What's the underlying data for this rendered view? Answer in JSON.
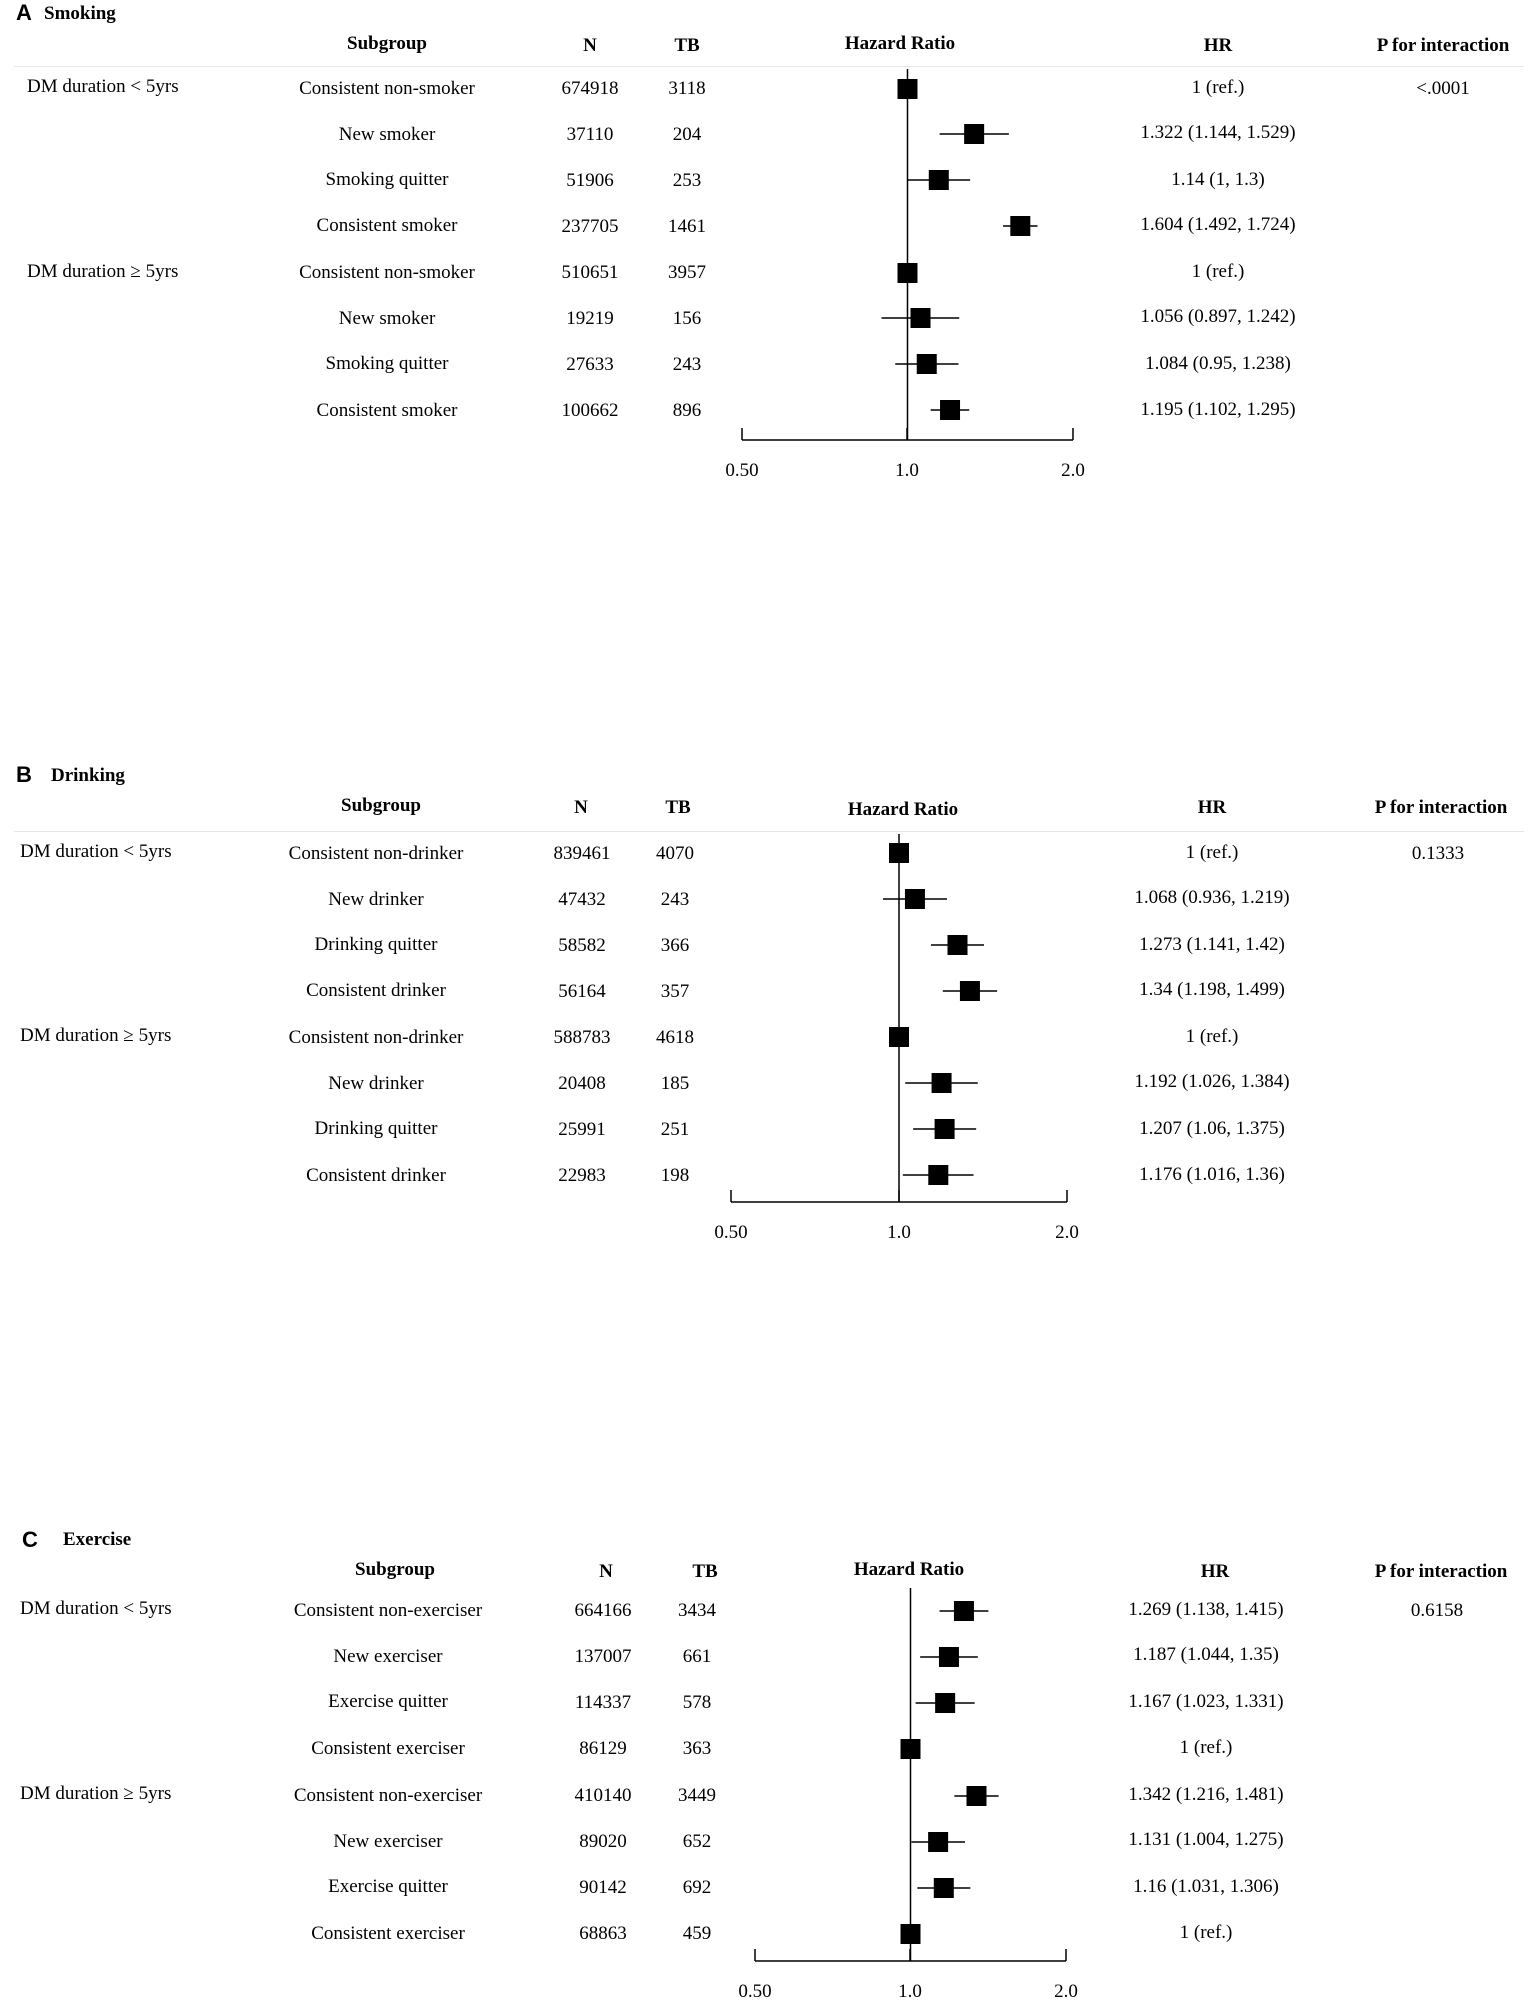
{
  "columns": {
    "subgroup": "Subgroup",
    "n": "N",
    "tb": "TB",
    "hazard_ratio": "Hazard  Ratio",
    "hr": "HR",
    "p": "P for interaction"
  },
  "chart_data": [
    {
      "type": "forest",
      "letter": "A",
      "title": "Smoking",
      "x_scale": "log",
      "xlim": [
        0.5,
        2.0
      ],
      "reference_line": 1.0,
      "x_ticks": [
        "0.50",
        "1.0",
        "2.0"
      ],
      "groups": [
        {
          "label": "DM duration  < 5yrs",
          "p_interaction": "<.0001",
          "rows": [
            {
              "subgroup": "Consistent  non-smoker",
              "n": "674918",
              "tb": "3118",
              "hr_text": "1 (ref.)",
              "hr": 1.0,
              "lo": 1.0,
              "hi": 1.0
            },
            {
              "subgroup": "New smoker",
              "n": "37110",
              "tb": "204",
              "hr_text": "1.322 (1.144, 1.529)",
              "hr": 1.322,
              "lo": 1.144,
              "hi": 1.529
            },
            {
              "subgroup": "Smoking  quitter",
              "n": "51906",
              "tb": "253",
              "hr_text": "1.14 (1, 1.3)",
              "hr": 1.14,
              "lo": 1.0,
              "hi": 1.3
            },
            {
              "subgroup": "Consistent  smoker",
              "n": "237705",
              "tb": "1461",
              "hr_text": "1.604 (1.492, 1.724)",
              "hr": 1.604,
              "lo": 1.492,
              "hi": 1.724
            }
          ]
        },
        {
          "label": "DM duration  ≥ 5yrs",
          "p_interaction": "",
          "rows": [
            {
              "subgroup": "Consistent  non-smoker",
              "n": "510651",
              "tb": "3957",
              "hr_text": "1 (ref.)",
              "hr": 1.0,
              "lo": 1.0,
              "hi": 1.0
            },
            {
              "subgroup": "New smoker",
              "n": "19219",
              "tb": "156",
              "hr_text": "1.056 (0.897, 1.242)",
              "hr": 1.056,
              "lo": 0.897,
              "hi": 1.242
            },
            {
              "subgroup": "Smoking  quitter",
              "n": "27633",
              "tb": "243",
              "hr_text": "1.084 (0.95, 1.238)",
              "hr": 1.084,
              "lo": 0.95,
              "hi": 1.238
            },
            {
              "subgroup": "Consistent  smoker",
              "n": "100662",
              "tb": "896",
              "hr_text": "1.195 (1.102, 1.295)",
              "hr": 1.195,
              "lo": 1.102,
              "hi": 1.295
            }
          ]
        }
      ]
    },
    {
      "type": "forest",
      "letter": "B",
      "title": "Drinking",
      "x_scale": "log",
      "xlim": [
        0.5,
        2.0
      ],
      "reference_line": 1.0,
      "x_ticks": [
        "0.50",
        "1.0",
        "2.0"
      ],
      "groups": [
        {
          "label": "DM duration  < 5yrs",
          "p_interaction": "0.1333",
          "rows": [
            {
              "subgroup": "Consistent  non-drinker",
              "n": "839461",
              "tb": "4070",
              "hr_text": "1 (ref.)",
              "hr": 1.0,
              "lo": 1.0,
              "hi": 1.0
            },
            {
              "subgroup": "New drinker",
              "n": "47432",
              "tb": "243",
              "hr_text": "1.068 (0.936, 1.219)",
              "hr": 1.068,
              "lo": 0.936,
              "hi": 1.219
            },
            {
              "subgroup": "Drinking  quitter",
              "n": "58582",
              "tb": "366",
              "hr_text": "1.273 (1.141, 1.42)",
              "hr": 1.273,
              "lo": 1.141,
              "hi": 1.42
            },
            {
              "subgroup": "Consistent  drinker",
              "n": "56164",
              "tb": "357",
              "hr_text": "1.34 (1.198, 1.499)",
              "hr": 1.34,
              "lo": 1.198,
              "hi": 1.499
            }
          ]
        },
        {
          "label": "DM duration  ≥ 5yrs",
          "p_interaction": "",
          "rows": [
            {
              "subgroup": "Consistent  non-drinker",
              "n": "588783",
              "tb": "4618",
              "hr_text": "1 (ref.)",
              "hr": 1.0,
              "lo": 1.0,
              "hi": 1.0
            },
            {
              "subgroup": "New drinker",
              "n": "20408",
              "tb": "185",
              "hr_text": "1.192 (1.026, 1.384)",
              "hr": 1.192,
              "lo": 1.026,
              "hi": 1.384
            },
            {
              "subgroup": "Drinking  quitter",
              "n": "25991",
              "tb": "251",
              "hr_text": "1.207 (1.06, 1.375)",
              "hr": 1.207,
              "lo": 1.06,
              "hi": 1.375
            },
            {
              "subgroup": "Consistent  drinker",
              "n": "22983",
              "tb": "198",
              "hr_text": "1.176 (1.016, 1.36)",
              "hr": 1.176,
              "lo": 1.016,
              "hi": 1.36
            }
          ]
        }
      ]
    },
    {
      "type": "forest",
      "letter": "C",
      "title": "Exercise",
      "x_scale": "log",
      "xlim": [
        0.5,
        2.0
      ],
      "reference_line": 1.0,
      "x_ticks": [
        "0.50",
        "1.0",
        "2.0"
      ],
      "groups": [
        {
          "label": "DM duration  < 5yrs",
          "p_interaction": "0.6158",
          "rows": [
            {
              "subgroup": "Consistent  non-exerciser",
              "n": "664166",
              "tb": "3434",
              "hr_text": "1.269 (1.138, 1.415)",
              "hr": 1.269,
              "lo": 1.138,
              "hi": 1.415
            },
            {
              "subgroup": "New exerciser",
              "n": "137007",
              "tb": "661",
              "hr_text": "1.187 (1.044, 1.35)",
              "hr": 1.187,
              "lo": 1.044,
              "hi": 1.35
            },
            {
              "subgroup": "Exercise  quitter",
              "n": "114337",
              "tb": "578",
              "hr_text": "1.167 (1.023, 1.331)",
              "hr": 1.167,
              "lo": 1.023,
              "hi": 1.331
            },
            {
              "subgroup": "Consistent  exerciser",
              "n": "86129",
              "tb": "363",
              "hr_text": "1 (ref.)",
              "hr": 1.0,
              "lo": 1.0,
              "hi": 1.0
            }
          ]
        },
        {
          "label": "DM duration  ≥ 5yrs",
          "p_interaction": "",
          "rows": [
            {
              "subgroup": "Consistent  non-exerciser",
              "n": "410140",
              "tb": "3449",
              "hr_text": "1.342 (1.216, 1.481)",
              "hr": 1.342,
              "lo": 1.216,
              "hi": 1.481
            },
            {
              "subgroup": "New exerciser",
              "n": "89020",
              "tb": "652",
              "hr_text": "1.131 (1.004, 1.275)",
              "hr": 1.131,
              "lo": 1.004,
              "hi": 1.275
            },
            {
              "subgroup": "Exercise  quitter",
              "n": "90142",
              "tb": "692",
              "hr_text": "1.16 (1.031, 1.306)",
              "hr": 1.16,
              "lo": 1.031,
              "hi": 1.306
            },
            {
              "subgroup": "Consistent  exerciser",
              "n": "68863",
              "tb": "459",
              "hr_text": "1 (ref.)",
              "hr": 1.0,
              "lo": 1.0,
              "hi": 1.0
            }
          ]
        }
      ]
    }
  ]
}
